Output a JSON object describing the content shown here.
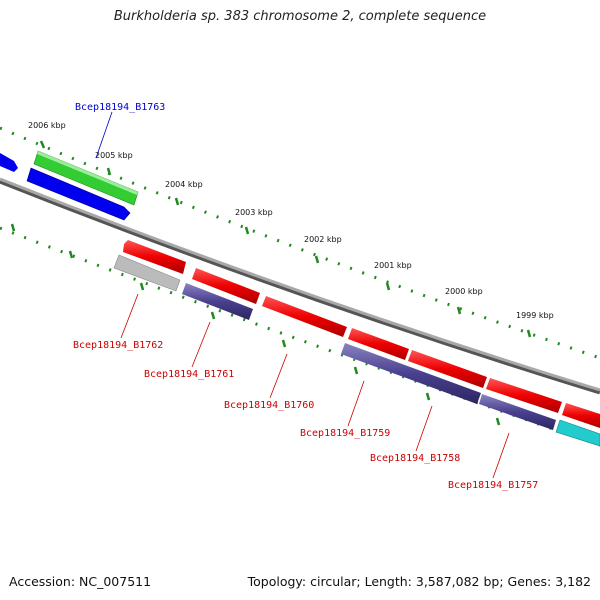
{
  "title": "Burkholderia sp. 383 chromosome 2, complete sequence",
  "accession": "Accession: NC_007511",
  "topology": "Topology: circular; Length: 3,587,082 bp; Genes: 3,182",
  "colors": {
    "forward_gene": "#ff0000",
    "reverse_gene": "#4a4090",
    "green_gene": "#33cc33",
    "blue_gene": "#0000ee",
    "grey_gene": "#bbbbbb",
    "cyan_gene": "#22cccc",
    "backbone": "#888888",
    "tick": "#228822",
    "label_forward": "#0000cc",
    "label_reverse": "#cc0000"
  },
  "ticks": [
    {
      "label": "2006 kbp"
    },
    {
      "label": "2005 kbp"
    },
    {
      "label": "2004 kbp"
    },
    {
      "label": "2003 kbp"
    },
    {
      "label": "2002 kbp"
    },
    {
      "label": "2001 kbp"
    },
    {
      "label": "2000 kbp"
    },
    {
      "label": "1999 kbp"
    }
  ],
  "gene_labels": [
    {
      "name": "Bcep18194_B1763"
    },
    {
      "name": "Bcep18194_B1762"
    },
    {
      "name": "Bcep18194_B1761"
    },
    {
      "name": "Bcep18194_B1760"
    },
    {
      "name": "Bcep18194_B1759"
    },
    {
      "name": "Bcep18194_B1758"
    },
    {
      "name": "Bcep18194_B1757"
    }
  ]
}
